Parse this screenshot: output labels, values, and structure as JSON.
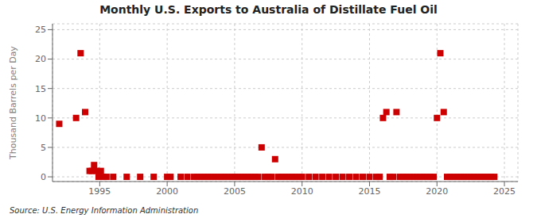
{
  "chart_data": {
    "type": "scatter",
    "title": "Monthly U.S. Exports to Australia of Distillate Fuel Oil",
    "ylabel": "Thousand Barrels per Day",
    "source": "Source: U.S. Energy Information Administration",
    "color": "#cc0000",
    "marker": "square",
    "grid": true,
    "xlim": [
      1991.5,
      2026
    ],
    "ylim": [
      -0.8,
      26
    ],
    "xticks": [
      1995,
      2000,
      2005,
      2010,
      2015,
      2020,
      2025
    ],
    "yticks": [
      0,
      5,
      10,
      15,
      20,
      25
    ],
    "x": [
      1992.0,
      1993.25,
      1993.583,
      1993.917,
      1994.25,
      1994.417,
      1994.583,
      1994.75,
      1994.917,
      1995.083,
      1995.25,
      1995.5,
      1996.0,
      1997.0,
      1998.0,
      1999.0,
      2000.0,
      2000.25,
      2001.0,
      2001.5,
      2002.0,
      2002.25,
      2002.5,
      2002.75,
      2003.0,
      2003.25,
      2003.5,
      2003.75,
      2004.0,
      2004.25,
      2004.5,
      2004.75,
      2005.0,
      2005.25,
      2005.5,
      2005.75,
      2006.0,
      2006.25,
      2006.5,
      2006.75,
      2007.0,
      2007.25,
      2007.5,
      2007.75,
      2008.0,
      2008.25,
      2008.5,
      2008.75,
      2009.0,
      2009.25,
      2009.5,
      2009.75,
      2010.0,
      2010.5,
      2011.0,
      2011.5,
      2012.0,
      2012.5,
      2013.0,
      2013.5,
      2014.0,
      2014.5,
      2015.0,
      2015.5,
      2015.75,
      2016.0,
      2016.25,
      2016.5,
      2016.75,
      2017.0,
      2017.25,
      2017.5,
      2017.75,
      2018.0,
      2018.25,
      2018.5,
      2018.75,
      2019.0,
      2019.25,
      2019.5,
      2019.75,
      2020.0,
      2020.25,
      2020.5,
      2020.75,
      2021.0,
      2021.25,
      2021.5,
      2021.75,
      2022.0,
      2022.25,
      2022.5,
      2022.75,
      2023.0,
      2023.25,
      2023.5,
      2023.75,
      2024.0,
      2024.25
    ],
    "values": [
      9.0,
      10.0,
      21.0,
      11.0,
      1.0,
      1.0,
      2.0,
      1.0,
      0.0,
      1.0,
      0.0,
      0.0,
      0.0,
      0.0,
      0.0,
      0.0,
      0.0,
      0.0,
      0.0,
      0.0,
      0.0,
      0.0,
      0.0,
      0.0,
      0.0,
      0.0,
      0.0,
      0.0,
      0.0,
      0.0,
      0.0,
      0.0,
      0.0,
      0.0,
      0.0,
      0.0,
      0.0,
      0.0,
      0.0,
      0.0,
      5.0,
      0.0,
      0.0,
      0.0,
      3.0,
      0.0,
      0.0,
      0.0,
      0.0,
      0.0,
      0.0,
      0.0,
      0.0,
      0.0,
      0.0,
      0.0,
      0.0,
      0.0,
      0.0,
      0.0,
      0.0,
      0.0,
      0.0,
      0.0,
      0.0,
      10.0,
      11.0,
      0.0,
      0.0,
      11.0,
      0.0,
      0.0,
      0.0,
      0.0,
      0.0,
      0.0,
      0.0,
      0.0,
      0.0,
      0.0,
      0.0,
      10.0,
      21.0,
      11.0,
      0.0,
      0.0,
      0.0,
      0.0,
      0.0,
      0.0,
      0.0,
      0.0,
      0.0,
      0.0,
      0.0,
      0.0,
      0.0,
      0.0,
      0.0
    ]
  }
}
